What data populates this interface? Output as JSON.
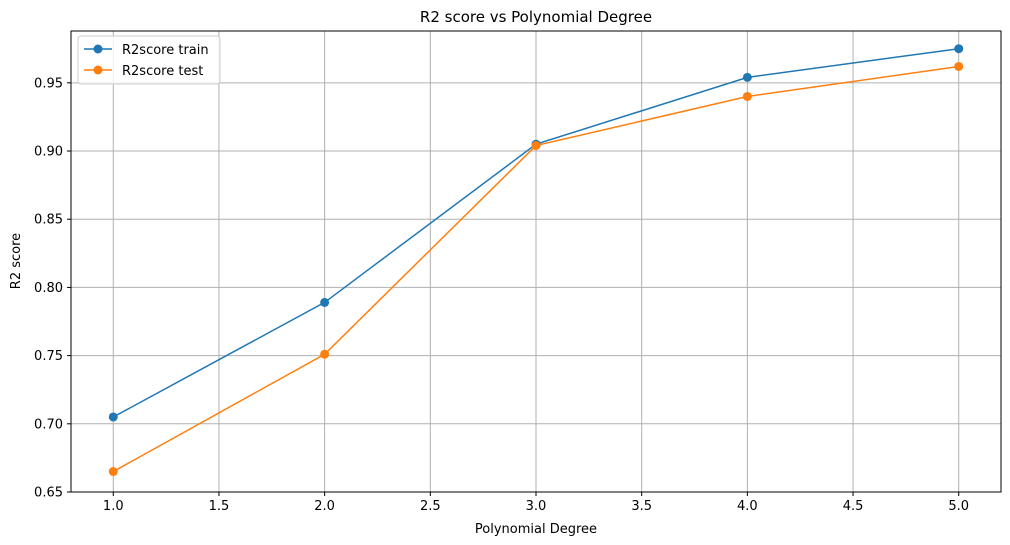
{
  "chart_data": {
    "type": "line",
    "title": "R2 score vs Polynomial Degree",
    "xlabel": "Polynomial Degree",
    "ylabel": "R2 score",
    "x": [
      1.0,
      2.0,
      3.0,
      4.0,
      5.0
    ],
    "xlim": [
      0.8,
      5.2
    ],
    "ylim": [
      0.65,
      0.988
    ],
    "xticks": [
      1.0,
      1.5,
      2.0,
      2.5,
      3.0,
      3.5,
      4.0,
      4.5,
      5.0
    ],
    "xtick_labels": [
      "1.0",
      "1.5",
      "2.0",
      "2.5",
      "3.0",
      "3.5",
      "4.0",
      "4.5",
      "5.0"
    ],
    "yticks": [
      0.65,
      0.7,
      0.75,
      0.8,
      0.85,
      0.9,
      0.95
    ],
    "ytick_labels": [
      "0.65",
      "0.70",
      "0.75",
      "0.80",
      "0.85",
      "0.90",
      "0.95"
    ],
    "grid": true,
    "legend_position": "top-left",
    "series": [
      {
        "name": "R2score train",
        "color": "#1f77b4",
        "marker": "circle",
        "values": [
          0.705,
          0.789,
          0.905,
          0.954,
          0.975
        ]
      },
      {
        "name": "R2score test",
        "color": "#ff7f0e",
        "marker": "circle",
        "values": [
          0.665,
          0.751,
          0.904,
          0.94,
          0.962
        ]
      }
    ]
  }
}
